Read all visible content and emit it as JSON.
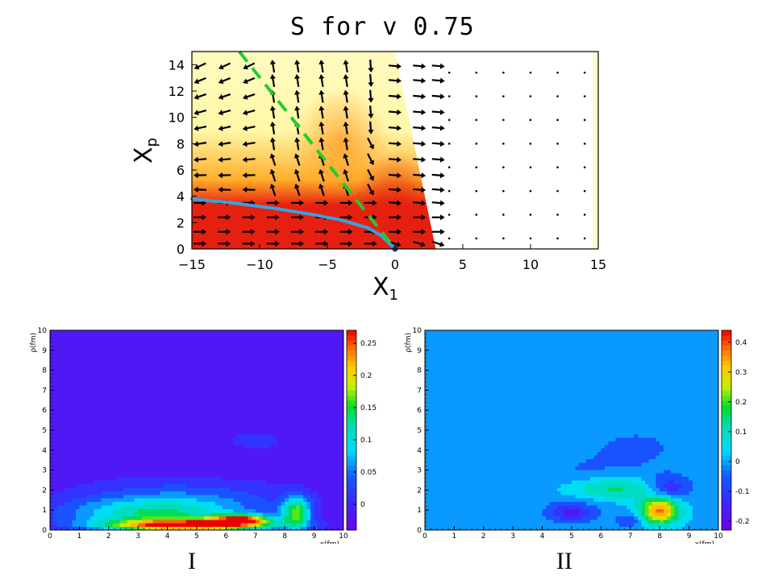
{
  "figure": {
    "title": "S for v 0.75",
    "panel_labels": [
      "I",
      "II"
    ]
  },
  "chart_data": [
    {
      "type": "heatmap",
      "title": "S for v 0.75",
      "xlabel": "X",
      "xlabel_sub": "1",
      "ylabel": "X",
      "ylabel_sub": "p",
      "xlim": [
        -15,
        15
      ],
      "ylim": [
        0,
        15
      ],
      "xticks": [
        -15,
        -10,
        -5,
        0,
        5,
        10,
        15
      ],
      "xtick_labels": [
        "−15",
        "−10",
        "−5",
        "0",
        "5",
        "10",
        "15"
      ],
      "yticks": [
        0,
        2,
        4,
        6,
        8,
        10,
        12,
        14
      ],
      "colors": {
        "low": "#fff8a8",
        "mid": "#ffae2a",
        "high": "#e62010"
      },
      "region_boundary": {
        "x": [
          -15,
          0,
          3
        ],
        "y": [
          15,
          15,
          0
        ]
      },
      "curve_blue": {
        "color": "#3aa0e0",
        "x": [
          -15,
          -12,
          -9,
          -6,
          -4,
          -2,
          -1,
          0
        ],
        "y": [
          3.8,
          3.5,
          3.1,
          2.6,
          2.2,
          1.6,
          1.0,
          0
        ]
      },
      "curve_green_dashed": {
        "color": "#22cc33",
        "x": [
          -11.5,
          0
        ],
        "y": [
          15,
          0
        ]
      },
      "arrows": "vector field shown on grid x∈[-15,3], y∈[0,15]; dots elsewhere"
    },
    {
      "type": "heatmap",
      "name": "I",
      "xlabel": "x(fm)",
      "ylabel": "ρ(fm)",
      "xlim": [
        0,
        10
      ],
      "ylim": [
        0,
        10
      ],
      "xticks": [
        0,
        1,
        2,
        3,
        4,
        5,
        6,
        7,
        8,
        9,
        10
      ],
      "yticks": [
        0,
        1,
        2,
        3,
        4,
        5,
        6,
        7,
        8,
        9,
        10
      ],
      "colorbar_ticks": [
        0,
        0.05,
        0.1,
        0.15,
        0.2,
        0.25
      ],
      "colorbar_labels": [
        "0",
        "0.05",
        "0.1",
        "0.15",
        "0.2",
        "0.25"
      ],
      "colorbar_range": [
        -0.04,
        0.27
      ],
      "background_value": -0.02,
      "features": [
        {
          "cx": 4.8,
          "cy": 0.25,
          "rx": 3.3,
          "ry": 0.35,
          "value": 0.24
        },
        {
          "cx": 6.5,
          "cy": 0.55,
          "rx": 1.2,
          "ry": 0.3,
          "value": 0.2
        },
        {
          "cx": 8.4,
          "cy": 0.9,
          "rx": 0.6,
          "ry": 0.9,
          "value": 0.15
        },
        {
          "cx": 3.5,
          "cy": 0.8,
          "rx": 3.6,
          "ry": 0.9,
          "value": 0.1
        },
        {
          "cx": 4.5,
          "cy": 1.6,
          "rx": 4.4,
          "ry": 1.3,
          "value": 0.04
        },
        {
          "cx": 5.5,
          "cy": 3.2,
          "rx": 1.8,
          "ry": 0.9,
          "value": -0.03
        },
        {
          "cx": 7.0,
          "cy": 4.5,
          "rx": 1.8,
          "ry": 0.9,
          "value": 0.005
        }
      ]
    },
    {
      "type": "heatmap",
      "name": "II",
      "xlabel": "x(fm)",
      "ylabel": "ρ(fm)",
      "xlim": [
        0,
        10
      ],
      "ylim": [
        0,
        10
      ],
      "xticks": [
        0,
        1,
        2,
        3,
        4,
        5,
        6,
        7,
        8,
        9,
        10
      ],
      "yticks": [
        0,
        1,
        2,
        3,
        4,
        5,
        6,
        7,
        8,
        9,
        10
      ],
      "colorbar_ticks": [
        -0.2,
        -0.1,
        0,
        0.1,
        0.2,
        0.3,
        0.4
      ],
      "colorbar_labels": [
        "-0.2",
        "-0.1",
        "0",
        "0.1",
        "0.2",
        "0.3",
        "0.4"
      ],
      "colorbar_range": [
        -0.23,
        0.44
      ],
      "background_value": 0,
      "features": [
        {
          "cx": 5.5,
          "cy": 2.6,
          "rx": 3.5,
          "ry": 1.4,
          "value": -0.045
        },
        {
          "cx": 7.2,
          "cy": 4.3,
          "rx": 2.2,
          "ry": 1.2,
          "value": -0.04
        },
        {
          "cx": 5.0,
          "cy": 0.9,
          "rx": 0.9,
          "ry": 0.6,
          "value": -0.16
        },
        {
          "cx": 6.5,
          "cy": 2.1,
          "rx": 2.2,
          "ry": 0.7,
          "value": 0.17
        },
        {
          "cx": 8.0,
          "cy": 1.0,
          "rx": 0.8,
          "ry": 0.8,
          "value": 0.38
        },
        {
          "cx": 8.3,
          "cy": 2.1,
          "rx": 0.9,
          "ry": 0.7,
          "value": -0.17
        },
        {
          "cx": 7.0,
          "cy": 0.5,
          "rx": 0.6,
          "ry": 0.4,
          "value": -0.1
        }
      ]
    }
  ]
}
